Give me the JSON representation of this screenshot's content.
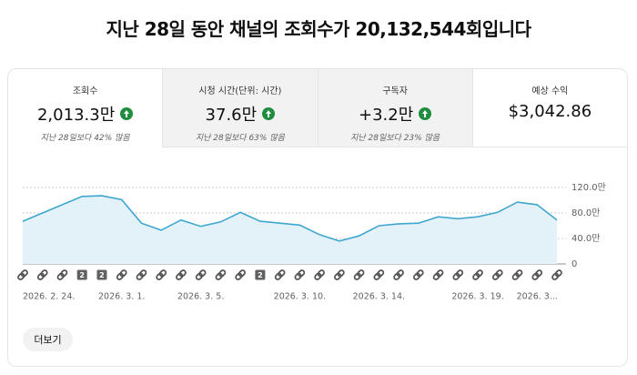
{
  "header": {
    "title": "지난 28일 동안 채널의 조회수가 20,132,544회입니다"
  },
  "cards": [
    {
      "label": "조회수",
      "value": "2,013.3만",
      "trend": "지난 28일보다 42% 많음"
    },
    {
      "label": "시청 시간(단위: 시간)",
      "value": "37.6만",
      "trend": "지난 28일보다 63% 많음"
    },
    {
      "label": "구독자",
      "value": "+3.2만",
      "trend": "지난 28일보다 23% 많음"
    },
    {
      "label": "예상 수익",
      "value": "$3,042.86"
    }
  ],
  "chart": {
    "type": "line",
    "color": "#3ea6cf",
    "fill": "#e3f2f9",
    "categories": [
      "2026. 2. 24.",
      null,
      null,
      null,
      null,
      "2026. 3. 1.",
      null,
      null,
      null,
      "2026. 3. 5.",
      null,
      null,
      null,
      null,
      "2026. 3. 10.",
      null,
      null,
      null,
      "2026. 3. 14.",
      null,
      null,
      null,
      null,
      "2026. 3. 19.",
      null,
      null,
      "2026. 3...",
      null
    ],
    "values": [
      67,
      80,
      93,
      106,
      107,
      101,
      64,
      53,
      69,
      59,
      66,
      81,
      67,
      64,
      61,
      46,
      36,
      44,
      60,
      63,
      64,
      74,
      71,
      74,
      81,
      97,
      93,
      69
    ],
    "markers": [
      null,
      null,
      null,
      "2",
      "2",
      null,
      null,
      null,
      null,
      null,
      null,
      null,
      "2",
      null,
      null,
      null,
      null,
      null,
      null,
      null,
      null,
      null,
      null,
      null,
      null,
      null,
      null,
      null
    ],
    "ylim": [
      0,
      120
    ],
    "yticks": [
      0,
      {
        "value": 40,
        "label": "40.0만"
      },
      {
        "value": 80,
        "label": "80.0만"
      },
      {
        "value": 120,
        "label": "120.0만"
      }
    ],
    "grid": true
  },
  "button": {
    "label": "더보기"
  }
}
